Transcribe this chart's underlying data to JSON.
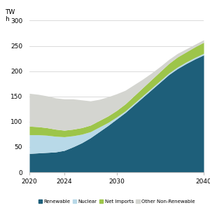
{
  "years": [
    2020,
    2021,
    2022,
    2023,
    2024,
    2025,
    2026,
    2027,
    2028,
    2029,
    2030,
    2031,
    2032,
    2033,
    2034,
    2035,
    2036,
    2037,
    2038,
    2039,
    2040
  ],
  "renewable": [
    37,
    38,
    39,
    40,
    43,
    50,
    58,
    68,
    80,
    92,
    105,
    118,
    133,
    148,
    163,
    178,
    193,
    205,
    215,
    224,
    232
  ],
  "nuclear": [
    37,
    36,
    34,
    31,
    27,
    22,
    17,
    12,
    9,
    6,
    4,
    3,
    3,
    3,
    3,
    3,
    3,
    3,
    3,
    3,
    3
  ],
  "net_imports": [
    17,
    16,
    15,
    14,
    13,
    13,
    13,
    13,
    13,
    13,
    13,
    14,
    15,
    16,
    17,
    18,
    19,
    20,
    20,
    21,
    22
  ],
  "other_non_ren": [
    65,
    64,
    63,
    62,
    62,
    60,
    55,
    48,
    42,
    38,
    33,
    27,
    22,
    17,
    13,
    10,
    8,
    7,
    6,
    5,
    5
  ],
  "renewable_color": "#1e5f7a",
  "nuclear_color": "#b8d9e8",
  "net_imports_color": "#9dc54a",
  "other_non_ren_color": "#d4d5d0",
  "ylabel": "TW\nh",
  "yticks": [
    0,
    50,
    100,
    150,
    200,
    250,
    300
  ],
  "xticks": [
    2020,
    2024,
    2030,
    2040
  ],
  "ylim": [
    0,
    320
  ],
  "xlim": [
    2020,
    2040
  ],
  "legend_labels": [
    "Renewable",
    "Nuclear",
    "Net Imports",
    "Other Non-Renewable"
  ],
  "background_color": "#ffffff",
  "grid_color": "#cccccc"
}
